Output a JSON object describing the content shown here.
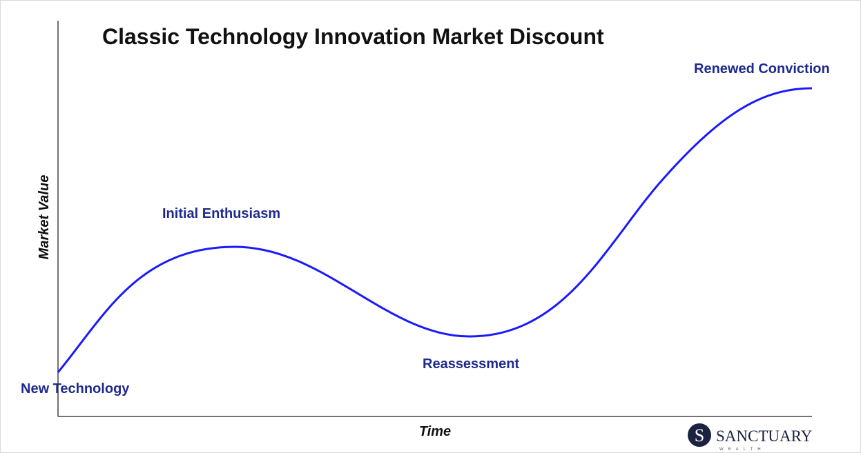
{
  "title": "Classic Technology Innovation Market Discount",
  "axes": {
    "y_label": "Market Value",
    "x_label": "Time"
  },
  "annotations": [
    "New Technology",
    "Initial Enthusiasm",
    "Reassessment",
    "Renewed Conviction"
  ],
  "logo": {
    "mark": "S",
    "name": "SANCTUARY",
    "tagline": "WEALTH"
  }
}
